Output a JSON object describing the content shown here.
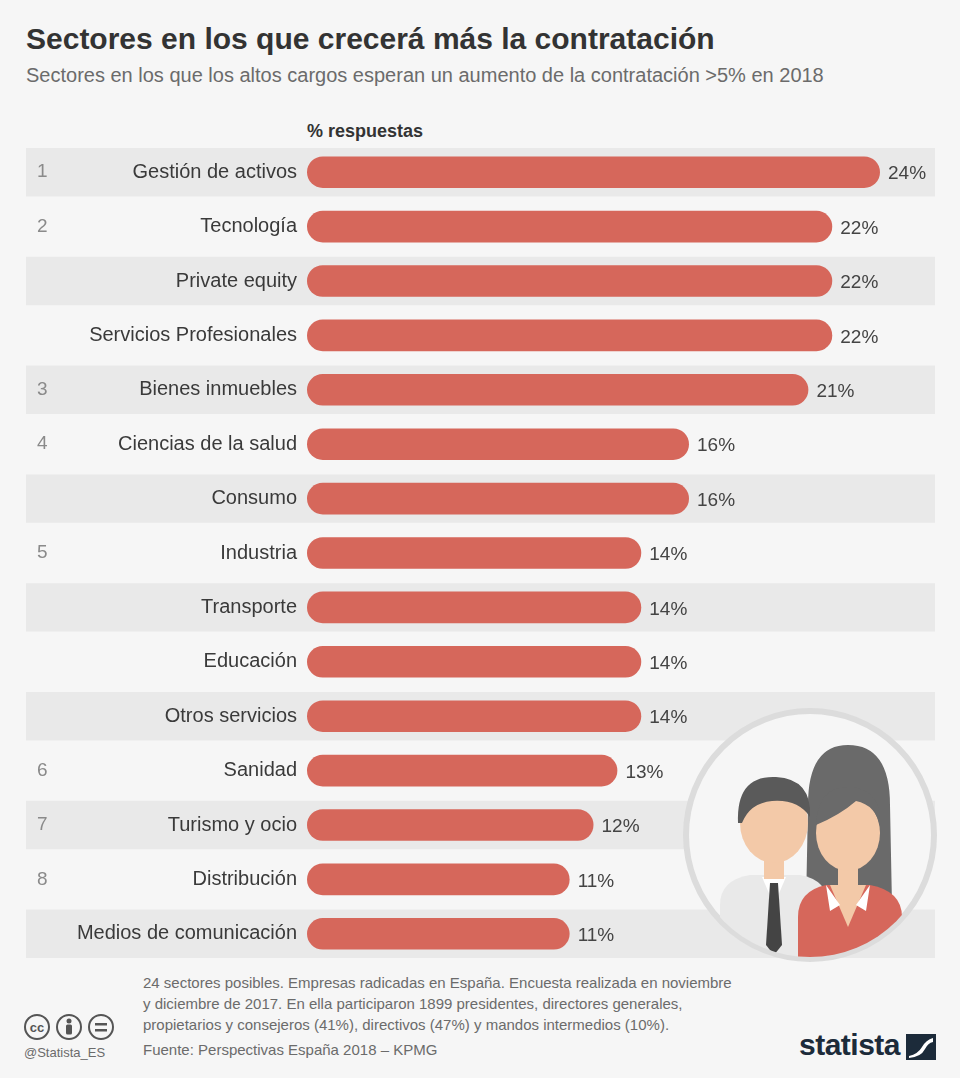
{
  "chart_data": {
    "type": "bar",
    "orientation": "horizontal",
    "title": "Sectores en los que crecerá más la contratación",
    "subtitle": "Sectores en los que los altos cargos esperan un aumento de la contratación >5% en 2018",
    "value_header": "% respuestas",
    "categories": [
      "Gestión de activos",
      "Tecnología",
      "Private equity",
      "Servicios Profesionales",
      "Bienes inmuebles",
      "Ciencias de la salud",
      "Consumo",
      "Industria",
      "Transporte",
      "Educación",
      "Otros servicios",
      "Sanidad",
      "Turismo y ocio",
      "Distribución",
      "Medios de comunicación"
    ],
    "ranks": [
      1,
      2,
      null,
      null,
      3,
      4,
      null,
      5,
      null,
      null,
      null,
      6,
      7,
      8,
      null
    ],
    "values": [
      24,
      22,
      22,
      22,
      21,
      16,
      16,
      14,
      14,
      14,
      14,
      13,
      12,
      11,
      11
    ],
    "value_labels": [
      "24%",
      "22%",
      "22%",
      "22%",
      "21%",
      "16%",
      "16%",
      "14%",
      "14%",
      "14%",
      "14%",
      "13%",
      "12%",
      "11%",
      "11%"
    ],
    "color": "#d6675b",
    "xlim": [
      0,
      24
    ],
    "grid": false,
    "tick_labels": false,
    "data_labels": true,
    "footnote": [
      "24 sectores posibles. Empresas radicadas en España. Encuesta realizada en noviembre",
      "y diciembre de 2017. En ella participaron 1899 presidentes, directores generales,",
      "propietarios y consejeros (41%), directivos (47%) y mandos intermedios (10%)."
    ],
    "source": "Fuente: Perspectivas España 2018 – KPMG",
    "credit": "@Statista_ES",
    "license": "cc",
    "brand": "statista"
  }
}
